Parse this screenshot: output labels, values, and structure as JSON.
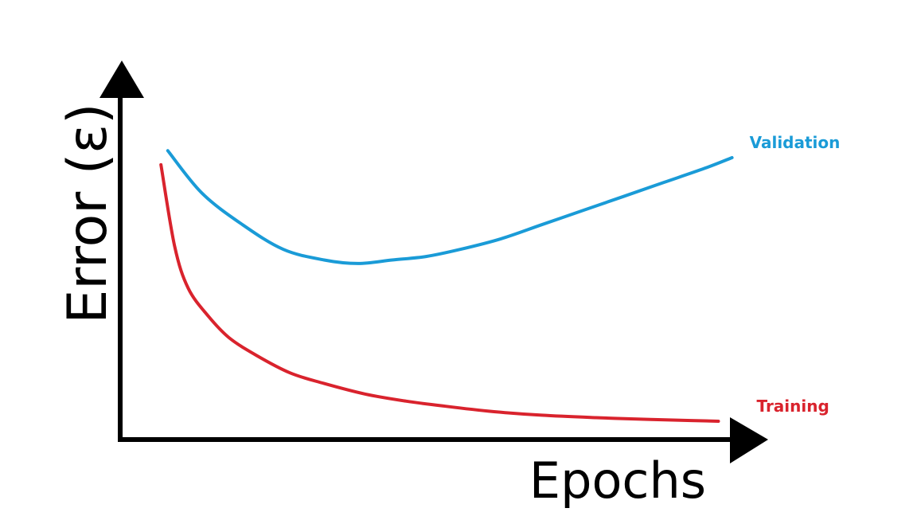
{
  "chart_data": {
    "type": "line",
    "title": "",
    "xlabel": "Epochs",
    "ylabel": "Error (ε)",
    "xlim": [
      0,
      100
    ],
    "ylim": [
      0,
      100
    ],
    "grid": false,
    "legend": "inline-right",
    "series": [
      {
        "name": "Validation",
        "color": "#1a9bd7",
        "x": [
          7,
          12,
          18,
          24,
          30,
          35,
          40,
          45,
          50,
          56,
          62,
          68,
          74,
          80,
          86,
          90
        ],
        "y": [
          81,
          69,
          60,
          53,
          50,
          49,
          50,
          51,
          53,
          56,
          60,
          64,
          68,
          72,
          76,
          79
        ]
      },
      {
        "name": "Training",
        "color": "#d9232d",
        "x": [
          6,
          8,
          10,
          13,
          16,
          20,
          25,
          30,
          36,
          42,
          48,
          55,
          62,
          70,
          78,
          84,
          88
        ],
        "y": [
          77,
          54,
          42,
          34,
          28,
          23,
          18,
          15,
          12,
          10,
          8.5,
          7,
          6,
          5.3,
          4.8,
          4.5,
          4.3
        ]
      }
    ]
  }
}
